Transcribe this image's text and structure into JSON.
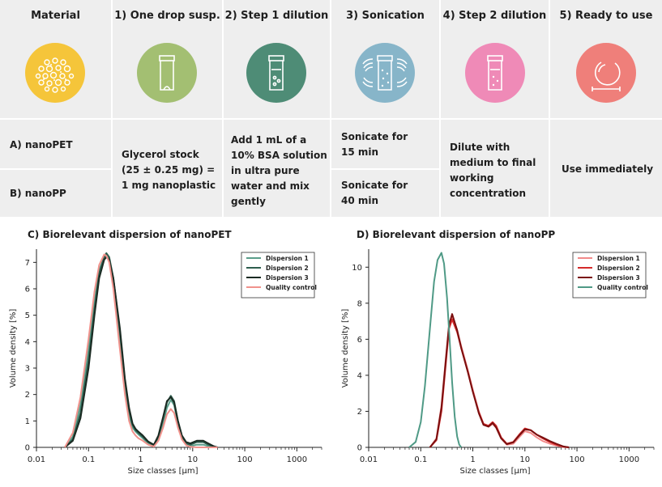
{
  "steps": {
    "material": "Material",
    "s1": "1) One drop susp.",
    "s2": "2) Step 1 dilution",
    "s3": "3) Sonication",
    "s4": "4) Step 2 dilution",
    "s5": "5) Ready to use"
  },
  "rows": {
    "a": "A) nanoPET",
    "b": "B) nanoPP",
    "glycerol": [
      "Glycerol stock",
      "(25 ± 0.25 mg) =",
      "1 mg nanoplastic"
    ],
    "bsa": [
      "Add 1 mL of a",
      "10% BSA solution",
      "in ultra pure",
      "water and mix",
      "gently"
    ],
    "son_a": [
      "Sonicate for",
      "15 min"
    ],
    "son_b": [
      "Sonicate for",
      "40 min"
    ],
    "dilute": [
      "Dilute with",
      "medium to final",
      "working",
      "concentration"
    ],
    "use": "Use immediately"
  },
  "colors": {
    "material": "#f5c53a",
    "s1": "#a3bf72",
    "s2": "#4e8c76",
    "s3": "#87b5c9",
    "s4": "#ef8ab7",
    "s5": "#ef7f7a"
  },
  "chart_data": [
    {
      "type": "line",
      "title": "C) Biorelevant dispersion of nanoPET",
      "xlabel": "Size classes [µm]",
      "ylabel": "Volume density [%]",
      "xscale": "log",
      "xlim": [
        0.01,
        3000
      ],
      "ylim": [
        0,
        7.5
      ],
      "xticks": [
        "0.01",
        "0.1",
        "1",
        "10",
        "100",
        "1000"
      ],
      "yticks": [
        0,
        1,
        2,
        3,
        4,
        5,
        6,
        7
      ],
      "legend_position": "top-right",
      "series": [
        {
          "name": "Dispersion 1",
          "color": "#5a9e8a",
          "x": [
            0.035,
            0.05,
            0.07,
            0.1,
            0.13,
            0.16,
            0.2,
            0.22,
            0.25,
            0.3,
            0.4,
            0.5,
            0.6,
            0.7,
            0.8,
            0.9,
            1.1,
            1.4,
            1.8,
            2.2,
            2.7,
            3.2,
            3.8,
            4.4,
            5.2,
            6.2,
            7.5,
            9,
            12,
            16,
            20,
            25,
            30
          ],
          "y": [
            0,
            0.4,
            1.6,
            3.7,
            5.5,
            6.7,
            7.2,
            7.3,
            7.1,
            6.2,
            4.0,
            2.2,
            1.2,
            0.75,
            0.6,
            0.5,
            0.35,
            0.15,
            0.05,
            0.3,
            0.9,
            1.5,
            1.8,
            1.6,
            0.9,
            0.35,
            0.1,
            0.05,
            0.1,
            0.1,
            0.05,
            0,
            0
          ]
        },
        {
          "name": "Dispersion 2",
          "color": "#2e5e4e",
          "x": [
            0.035,
            0.05,
            0.07,
            0.1,
            0.13,
            0.16,
            0.2,
            0.22,
            0.25,
            0.3,
            0.4,
            0.5,
            0.6,
            0.7,
            0.8,
            0.9,
            1.1,
            1.4,
            1.8,
            2.2,
            2.7,
            3.2,
            3.8,
            4.4,
            5.2,
            6.2,
            7.5,
            9,
            12,
            16,
            20,
            25,
            30
          ],
          "y": [
            0,
            0.3,
            1.3,
            3.3,
            5.2,
            6.6,
            7.2,
            7.35,
            7.2,
            6.4,
            4.4,
            2.5,
            1.4,
            0.85,
            0.65,
            0.55,
            0.4,
            0.2,
            0.08,
            0.4,
            1.1,
            1.7,
            1.95,
            1.75,
            1.0,
            0.4,
            0.15,
            0.1,
            0.2,
            0.2,
            0.1,
            0.02,
            0
          ]
        },
        {
          "name": "Dispersion 3",
          "color": "#1a2a22",
          "x": [
            0.035,
            0.05,
            0.07,
            0.1,
            0.13,
            0.16,
            0.2,
            0.22,
            0.25,
            0.3,
            0.4,
            0.5,
            0.6,
            0.7,
            0.8,
            0.9,
            1.1,
            1.4,
            1.8,
            2.2,
            2.7,
            3.2,
            3.8,
            4.4,
            5.2,
            6.2,
            7.5,
            9,
            12,
            16,
            20,
            25,
            30
          ],
          "y": [
            0,
            0.25,
            1.1,
            3.0,
            5.0,
            6.4,
            7.1,
            7.2,
            7.1,
            6.4,
            4.5,
            2.6,
            1.5,
            0.9,
            0.7,
            0.6,
            0.45,
            0.22,
            0.1,
            0.45,
            1.15,
            1.75,
            1.9,
            1.7,
            1.0,
            0.45,
            0.2,
            0.15,
            0.25,
            0.25,
            0.15,
            0.05,
            0
          ]
        },
        {
          "name": "Quality control",
          "color": "#f0928c",
          "x": [
            0.035,
            0.05,
            0.07,
            0.1,
            0.13,
            0.16,
            0.2,
            0.22,
            0.25,
            0.3,
            0.4,
            0.5,
            0.6,
            0.7,
            0.8,
            0.9,
            1.1,
            1.4,
            1.8,
            2.2,
            2.7,
            3.2,
            3.8,
            4.4,
            5.2,
            6.2,
            7.5,
            9,
            12,
            16,
            20,
            25,
            30
          ],
          "y": [
            0,
            0.55,
            1.9,
            4.1,
            5.9,
            6.9,
            7.3,
            7.25,
            7.0,
            6.0,
            3.7,
            2.0,
            1.0,
            0.6,
            0.45,
            0.35,
            0.25,
            0.1,
            0.03,
            0.25,
            0.75,
            1.25,
            1.45,
            1.3,
            0.75,
            0.3,
            0.08,
            0.02,
            0,
            0,
            0,
            0,
            0
          ]
        }
      ]
    },
    {
      "type": "line",
      "title": "D) Biorelevant dispersion of nanoPP",
      "xlabel": "Size classes [µm]",
      "ylabel": "Volume density [%]",
      "xscale": "log",
      "xlim": [
        0.01,
        3000
      ],
      "ylim": [
        0,
        11
      ],
      "xticks": [
        "0.01",
        "0.1",
        "1",
        "10",
        "100",
        "1000"
      ],
      "yticks": [
        0,
        2,
        4,
        6,
        8,
        10
      ],
      "legend_position": "top-right",
      "series": [
        {
          "name": "Dispersion 1",
          "color": "#f28a8a",
          "x": [
            0.15,
            0.2,
            0.25,
            0.3,
            0.35,
            0.4,
            0.5,
            0.6,
            0.8,
            1.0,
            1.3,
            1.6,
            2.0,
            2.4,
            2.8,
            3.5,
            4.5,
            6,
            8,
            10,
            13,
            17,
            22,
            30,
            40,
            55,
            70
          ],
          "y": [
            0,
            0.5,
            2.3,
            4.8,
            6.8,
            7.3,
            6.5,
            5.6,
            4.3,
            3.2,
            2.0,
            1.3,
            1.15,
            1.3,
            1.1,
            0.5,
            0.15,
            0.2,
            0.6,
            0.9,
            0.8,
            0.55,
            0.35,
            0.2,
            0.1,
            0.02,
            0
          ]
        },
        {
          "name": "Dispersion 2",
          "color": "#d42a2a",
          "x": [
            0.15,
            0.2,
            0.25,
            0.3,
            0.35,
            0.4,
            0.5,
            0.6,
            0.8,
            1.0,
            1.3,
            1.6,
            2.0,
            2.4,
            2.8,
            3.5,
            4.5,
            6,
            8,
            10,
            13,
            17,
            22,
            30,
            40,
            55,
            70
          ],
          "y": [
            0,
            0.4,
            2.0,
            4.5,
            6.6,
            7.1,
            6.4,
            5.5,
            4.2,
            3.1,
            1.95,
            1.3,
            1.2,
            1.4,
            1.2,
            0.55,
            0.2,
            0.3,
            0.75,
            1.05,
            0.95,
            0.7,
            0.5,
            0.3,
            0.15,
            0.03,
            0
          ]
        },
        {
          "name": "Dispersion 3",
          "color": "#7a0f0f",
          "x": [
            0.15,
            0.2,
            0.25,
            0.3,
            0.35,
            0.4,
            0.5,
            0.6,
            0.8,
            1.0,
            1.3,
            1.6,
            2.0,
            2.4,
            2.8,
            3.5,
            4.5,
            6,
            8,
            10,
            13,
            17,
            22,
            30,
            40,
            55,
            70
          ],
          "y": [
            0,
            0.45,
            2.2,
            4.7,
            6.8,
            7.4,
            6.5,
            5.5,
            4.2,
            3.1,
            1.9,
            1.25,
            1.15,
            1.35,
            1.1,
            0.5,
            0.18,
            0.28,
            0.7,
            1.0,
            0.95,
            0.7,
            0.55,
            0.35,
            0.2,
            0.05,
            0
          ]
        },
        {
          "name": "Quality control",
          "color": "#4f9a86",
          "x": [
            0.06,
            0.08,
            0.1,
            0.12,
            0.15,
            0.18,
            0.21,
            0.25,
            0.28,
            0.32,
            0.36,
            0.4,
            0.45,
            0.5,
            0.55,
            0.6
          ],
          "y": [
            0,
            0.3,
            1.4,
            3.4,
            6.6,
            9.2,
            10.4,
            10.8,
            10.2,
            8.3,
            5.9,
            3.6,
            1.7,
            0.6,
            0.15,
            0
          ]
        }
      ]
    }
  ]
}
